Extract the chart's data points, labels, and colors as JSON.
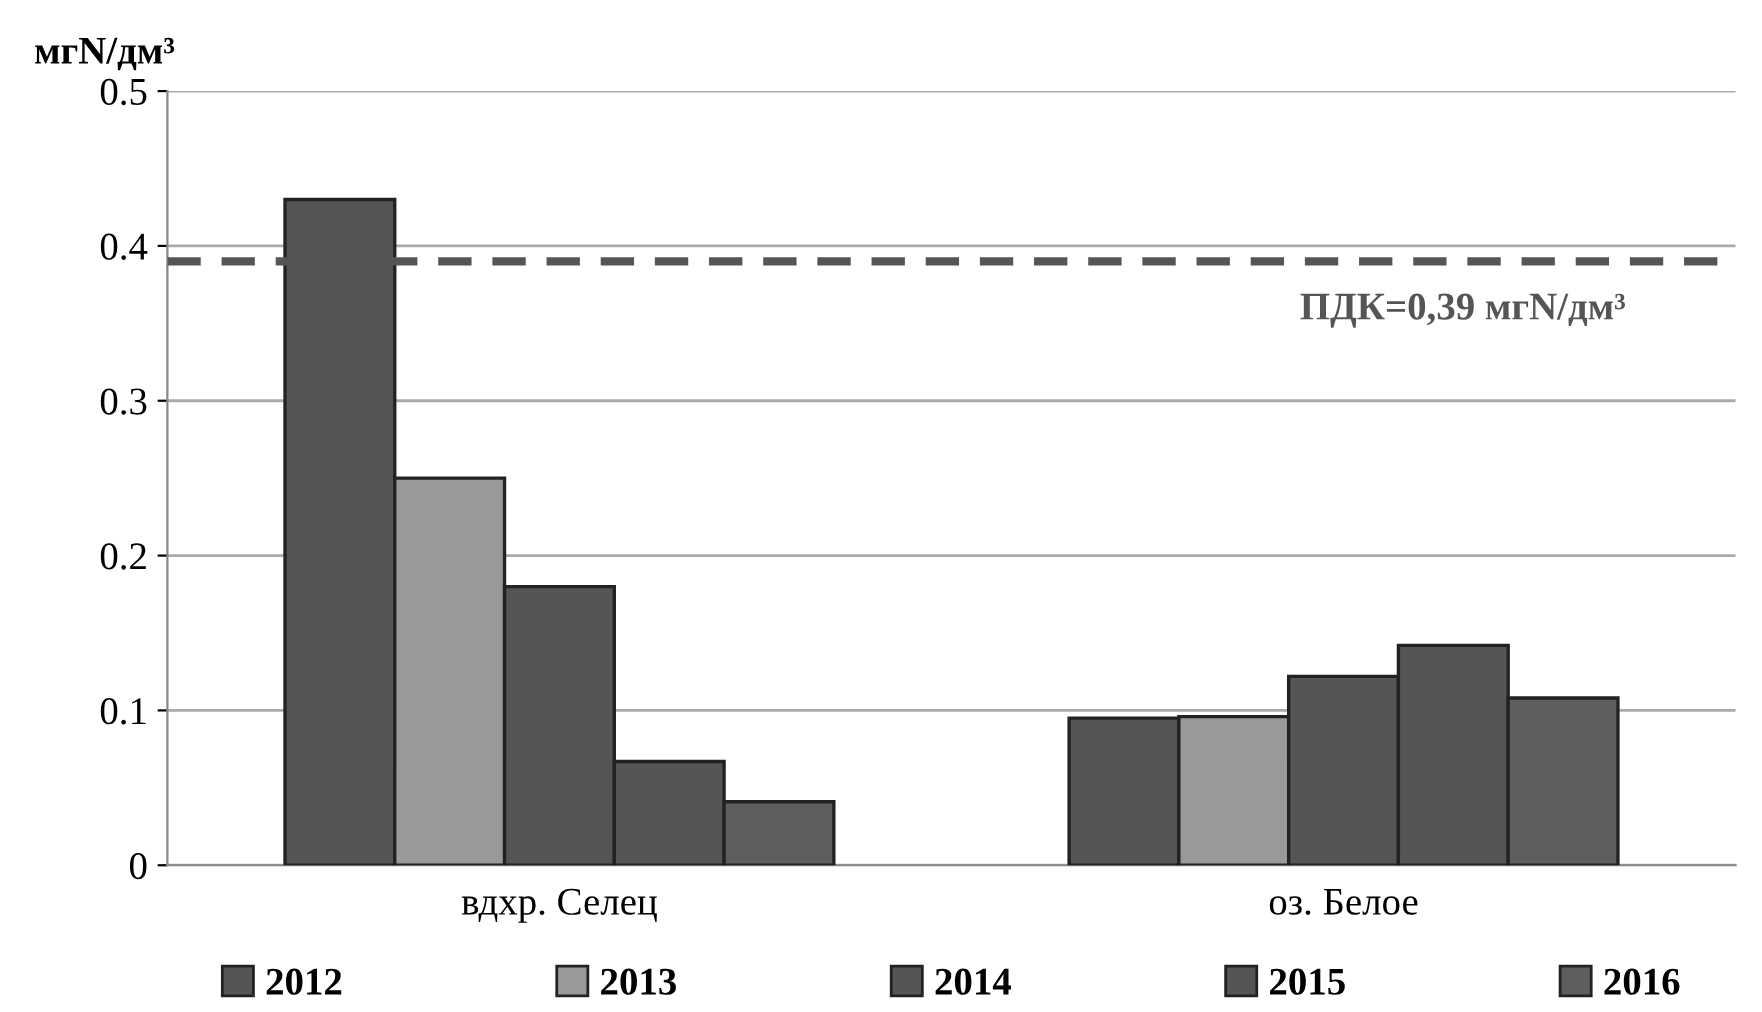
{
  "chart_data": {
    "type": "bar",
    "ylabel": "мгN/дм³",
    "categories": [
      "вдхр. Селец",
      "оз. Белое"
    ],
    "series": [
      {
        "name": "2012",
        "color": "#555555",
        "values": [
          0.43,
          0.095
        ]
      },
      {
        "name": "2013",
        "color": "#999999",
        "values": [
          0.25,
          0.096
        ]
      },
      {
        "name": "2014",
        "color": "#555555",
        "values": [
          0.18,
          0.122
        ]
      },
      {
        "name": "2015",
        "color": "#555555",
        "values": [
          0.067,
          0.142
        ]
      },
      {
        "name": "2016",
        "color": "#5e5e5e",
        "values": [
          0.041,
          0.108
        ]
      }
    ],
    "ylim": [
      0,
      0.5
    ],
    "yticks": [
      {
        "value": 0,
        "label": "0"
      },
      0.1,
      0.2,
      0.3,
      0.4,
      0.5
    ],
    "grid": "y",
    "legend": "bottom",
    "ref_lines": [
      {
        "axis": "y",
        "value": 0.39,
        "label": "ПДК=0,39 мгN/дм³",
        "color": "#555555",
        "line_style": "dashed"
      }
    ]
  }
}
